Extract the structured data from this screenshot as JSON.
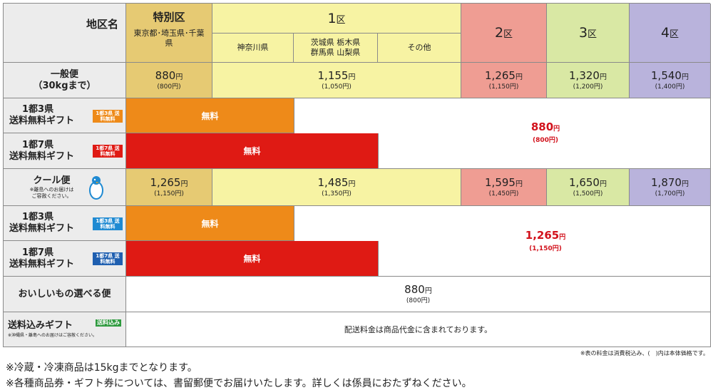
{
  "header": {
    "region_label": "地区名",
    "special_zone": "特別区",
    "special_prefs": "東京都･埼玉県･千葉県",
    "zone1": "1",
    "zone1_suffix": "区",
    "kanagawa": "神奈川県",
    "ibaraki_line1": "茨城県 栃木県",
    "ibaraki_line2": "群馬県 山梨県",
    "other": "その他",
    "zone2": "2",
    "zone3": "3",
    "zone4": "4",
    "zone_suffix": "区"
  },
  "rows": {
    "general": {
      "label1": "一般便",
      "label2": "（30kgまで）",
      "special": "880",
      "special_tax": "(800円)",
      "zone1": "1,155",
      "zone1_tax": "(1,050円)",
      "zone2": "1,265",
      "zone2_tax": "(1,150円)",
      "zone3": "1,320",
      "zone3_tax": "(1,200円)",
      "zone4": "1,540",
      "zone4_tax": "(1,400円)"
    },
    "gift3_general": {
      "label1": "1都3県",
      "label2": "送料無料ギフト",
      "badge": "1都3県 送料無料",
      "free": "無料"
    },
    "gift7_general": {
      "label1": "1都7県",
      "label2": "送料無料ギフト",
      "badge": "1都7県 送料無料",
      "free": "無料"
    },
    "general_flat": {
      "price": "880",
      "tax": "(800円)"
    },
    "cool": {
      "label1": "クール便",
      "note1": "※離島へのお届けは",
      "note2": "ご容赦ください。",
      "special": "1,265",
      "special_tax": "(1,150円)",
      "zone1": "1,485",
      "zone1_tax": "(1,350円)",
      "zone2": "1,595",
      "zone2_tax": "(1,450円)",
      "zone3": "1,650",
      "zone3_tax": "(1,500円)",
      "zone4": "1,870",
      "zone4_tax": "(1,700円)"
    },
    "gift3_cool": {
      "label1": "1都3県",
      "label2": "送料無料ギフト",
      "badge": "1都3県 送料無料",
      "free": "無料"
    },
    "gift7_cool": {
      "label1": "1都7県",
      "label2": "送料無料ギフト",
      "badge": "1都7県 送料無料",
      "free": "無料"
    },
    "cool_flat": {
      "price": "1,265",
      "tax": "(1,150円)"
    },
    "oishii": {
      "label": "おいしいもの選べる便",
      "price": "880",
      "tax": "(800円)"
    },
    "included": {
      "label": "送料込みギフト",
      "badge": "送料込み",
      "note": "※沖縄県・離島へのお届けはご容赦ください。",
      "text": "配送料金は商品代金に含まれております。"
    }
  },
  "yen": "円",
  "footnote_tax": "※表の料金は消費税込み、(　)内は本体価格です。",
  "note1": "※冷蔵・冷凍商品は15kgまでとなります。",
  "note2": "※各種商品券・ギフト券については、書留郵便でお届けいたします。詳しくは係員におたずねください。",
  "colors": {
    "gold": "#e6ca73",
    "yellow": "#f7f3a3",
    "pink": "#ef9d93",
    "green": "#d9e8a4",
    "purple": "#b9b3dc",
    "orange": "#ee8a19",
    "red": "#df1a14",
    "price_red": "#d2121c"
  }
}
